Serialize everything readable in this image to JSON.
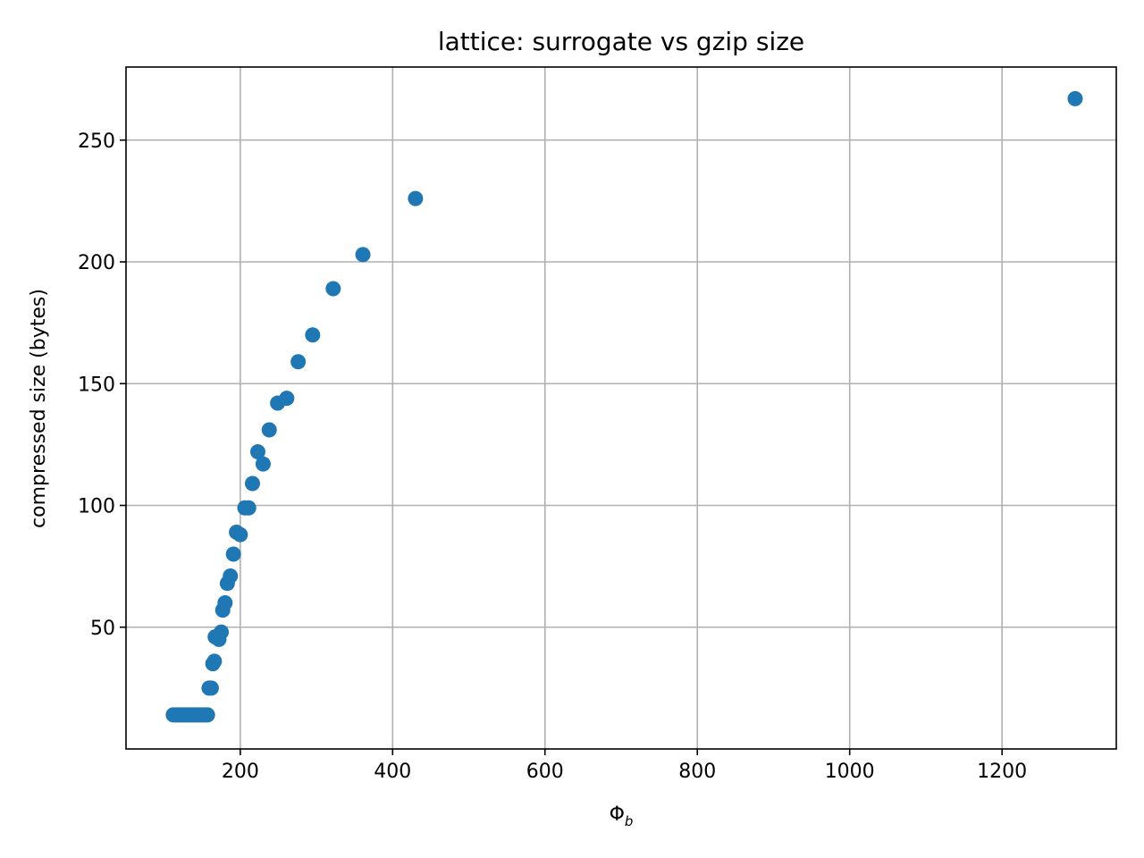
{
  "chart_data": {
    "type": "scatter",
    "title": "lattice: surrogate vs gzip size",
    "xlabel": "Φ",
    "xlabel_sub": "b",
    "ylabel": "compressed size (bytes)",
    "xlim": [
      50,
      1350
    ],
    "ylim": [
      0,
      280
    ],
    "xticks": [
      200,
      400,
      600,
      800,
      1000,
      1200
    ],
    "yticks": [
      50,
      100,
      150,
      200,
      250
    ],
    "grid": true,
    "marker_color": "#1f77b4",
    "points": [
      {
        "x": 112,
        "y": 14
      },
      {
        "x": 115,
        "y": 14
      },
      {
        "x": 118,
        "y": 14
      },
      {
        "x": 121,
        "y": 14
      },
      {
        "x": 124,
        "y": 14
      },
      {
        "x": 127,
        "y": 14
      },
      {
        "x": 130,
        "y": 14
      },
      {
        "x": 133,
        "y": 14
      },
      {
        "x": 136,
        "y": 14
      },
      {
        "x": 139,
        "y": 14
      },
      {
        "x": 142,
        "y": 14
      },
      {
        "x": 145,
        "y": 14
      },
      {
        "x": 148,
        "y": 14
      },
      {
        "x": 151,
        "y": 14
      },
      {
        "x": 154,
        "y": 14
      },
      {
        "x": 157,
        "y": 14
      },
      {
        "x": 159,
        "y": 25
      },
      {
        "x": 162,
        "y": 25
      },
      {
        "x": 164,
        "y": 35
      },
      {
        "x": 166,
        "y": 36
      },
      {
        "x": 167,
        "y": 46
      },
      {
        "x": 170,
        "y": 46
      },
      {
        "x": 172,
        "y": 45
      },
      {
        "x": 175,
        "y": 48
      },
      {
        "x": 177,
        "y": 57
      },
      {
        "x": 180,
        "y": 60
      },
      {
        "x": 183,
        "y": 68
      },
      {
        "x": 187,
        "y": 71
      },
      {
        "x": 191,
        "y": 80
      },
      {
        "x": 195,
        "y": 89
      },
      {
        "x": 200,
        "y": 88
      },
      {
        "x": 206,
        "y": 99
      },
      {
        "x": 211,
        "y": 99
      },
      {
        "x": 216,
        "y": 109
      },
      {
        "x": 223,
        "y": 122
      },
      {
        "x": 230,
        "y": 117
      },
      {
        "x": 238,
        "y": 131
      },
      {
        "x": 249,
        "y": 142
      },
      {
        "x": 261,
        "y": 144
      },
      {
        "x": 276,
        "y": 159
      },
      {
        "x": 295,
        "y": 170
      },
      {
        "x": 322,
        "y": 189
      },
      {
        "x": 361,
        "y": 203
      },
      {
        "x": 430,
        "y": 226
      },
      {
        "x": 1296,
        "y": 267
      }
    ]
  }
}
